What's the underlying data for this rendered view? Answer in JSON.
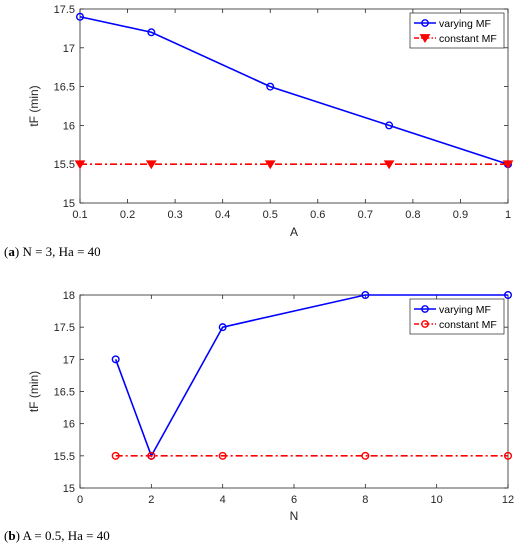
{
  "chart_data": [
    {
      "type": "line",
      "caption": {
        "open": "(",
        "label": "a",
        "close": ")",
        "text": " N = 3, Ha = 40"
      },
      "xlabel": "A",
      "ylabel": "tF (min)",
      "xlim": [
        0.1,
        1
      ],
      "ylim": [
        15,
        17.5
      ],
      "xticks": [
        0.1,
        0.2,
        0.3,
        0.4,
        0.5,
        0.6,
        0.7,
        0.8,
        0.9,
        1
      ],
      "xtick_labels": [
        "0.1",
        "0.2",
        "0.3",
        "0.4",
        "0.5",
        "0.6",
        "0.7",
        "0.8",
        "0.9",
        "1"
      ],
      "yticks": [
        15,
        15.5,
        16,
        16.5,
        17,
        17.5
      ],
      "ytick_labels": [
        "15",
        "15.5",
        "16",
        "16.5",
        "17",
        "17.5"
      ],
      "grid": false,
      "legend_position": "top-right",
      "series": [
        {
          "name": "varying MF",
          "color": "#0000ff",
          "line": "solid",
          "marker": "circle",
          "x": [
            0.1,
            0.25,
            0.5,
            0.75,
            1
          ],
          "y": [
            17.4,
            17.2,
            16.5,
            16,
            15.5
          ]
        },
        {
          "name": "constant MF",
          "color": "#ff0000",
          "line": "dashdot",
          "marker": "triangle-down",
          "x": [
            0.1,
            0.25,
            0.5,
            0.75,
            1
          ],
          "y": [
            15.5,
            15.5,
            15.5,
            15.5,
            15.5
          ]
        }
      ]
    },
    {
      "type": "line",
      "caption": {
        "open": "(",
        "label": "b",
        "close": ")",
        "text": " A = 0.5, Ha = 40"
      },
      "xlabel": "N",
      "ylabel": "tF (min)",
      "xlim": [
        0,
        12
      ],
      "ylim": [
        15,
        18
      ],
      "xticks": [
        0,
        2,
        4,
        6,
        8,
        10,
        12
      ],
      "xtick_labels": [
        "0",
        "2",
        "4",
        "6",
        "8",
        "10",
        "12"
      ],
      "yticks": [
        15,
        15.5,
        16,
        16.5,
        17,
        17.5,
        18
      ],
      "ytick_labels": [
        "15",
        "15.5",
        "16",
        "16.5",
        "17",
        "17.5",
        "18"
      ],
      "grid": false,
      "legend_position": "top-right",
      "series": [
        {
          "name": "varying MF",
          "color": "#0000ff",
          "line": "solid",
          "marker": "circle",
          "x": [
            1,
            2,
            4,
            8,
            12
          ],
          "y": [
            17,
            15.5,
            17.5,
            18,
            18
          ]
        },
        {
          "name": "constant MF",
          "color": "#ff0000",
          "line": "dashdot",
          "marker": "circle",
          "x": [
            1,
            2,
            4,
            8,
            12
          ],
          "y": [
            15.5,
            15.5,
            15.5,
            15.5,
            15.5
          ]
        }
      ]
    }
  ]
}
